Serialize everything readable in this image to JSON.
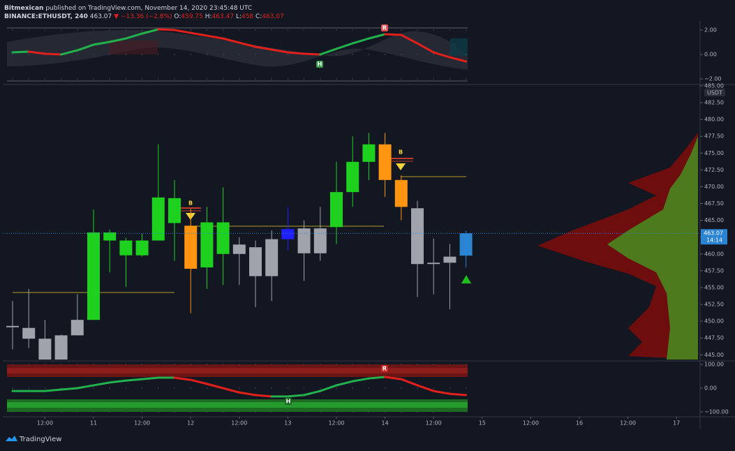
{
  "header": {
    "author": "Bitmexican",
    "published": "published on TradingView.com, November 14, 2020 23:45:48 UTC",
    "symbol": "BINANCE:ETHUSDT, 240",
    "arrow": "▼",
    "change": "−13.36 (−2.8%)",
    "o_label": "O:",
    "h_label": "H:",
    "l_label": "L:",
    "c_label": "C:",
    "countdown": "14:14",
    "unit": "USDT"
  },
  "footer": "TradingView",
  "chart_data": [
    {
      "type": "line",
      "name": "top-oscillator",
      "values": [
        0.17,
        0.23,
        0.06,
        0,
        0.34,
        0.8,
        1.03,
        1.31,
        1.71,
        2.06,
        2.0,
        1.77,
        1.54,
        1.31,
        0.97,
        0.63,
        0.4,
        0.17,
        0.06,
        0,
        0.46,
        0.91,
        1.31,
        1.66,
        1.6,
        0.91,
        0.17,
        -0.23,
        -0.57
      ],
      "up_color": "#22b14c",
      "down_color": "#e0201b",
      "ylim": [
        -2.4,
        2.46
      ],
      "yticks": [
        {
          "value": 2,
          "label": "2.00"
        },
        {
          "value": 0,
          "label": "0.00"
        },
        {
          "value": -2,
          "label": "−2.00"
        }
      ],
      "annotations": [
        "H",
        "R"
      ]
    },
    {
      "type": "candlestick",
      "name": "ETHUSDT",
      "open": [
        449.3,
        449.0,
        447.4,
        444.3,
        447.9,
        450.2,
        463.2,
        459.8,
        459.8,
        462.0,
        464.6,
        464.2,
        458.0,
        460.0,
        461.4,
        461.0,
        462.2,
        463.7,
        460.1,
        460.1,
        464.0,
        469.2,
        473.7,
        476.3,
        471.0,
        466.8,
        458.5,
        459.6,
        459.75
      ],
      "high": [
        453.0,
        454.8,
        450.2,
        448.0,
        454.0,
        466.6,
        463.6,
        462.4,
        463.0,
        476.3,
        471.0,
        466.7,
        467.0,
        469.9,
        462.5,
        462.0,
        463.5,
        467.0,
        465.0,
        467.0,
        473.7,
        477.5,
        478.0,
        478.0,
        471.7,
        467.9,
        462.3,
        461.5,
        463.47
      ],
      "low": [
        445.8,
        446.0,
        444.3,
        444.3,
        447.9,
        450.2,
        457.3,
        455.1,
        459.6,
        462.0,
        459.0,
        451.2,
        454.8,
        455.4,
        455.4,
        452.1,
        453.0,
        460.5,
        456.0,
        459.0,
        461.5,
        467.0,
        471.0,
        468.5,
        465.0,
        453.6,
        454.0,
        451.8,
        458.0
      ],
      "close": [
        449.1,
        447.4,
        444.3,
        447.9,
        450.2,
        463.2,
        462.0,
        462.0,
        462.0,
        468.4,
        468.3,
        457.8,
        464.7,
        464.7,
        460.0,
        456.7,
        456.7,
        462.2,
        463.8,
        463.8,
        469.2,
        473.7,
        476.3,
        471.0,
        467.0,
        458.5,
        458.7,
        458.7,
        463.07
      ],
      "colors": [
        "#a0a3ab",
        "#a0a3ab",
        "#a0a3ab",
        "#a0a3ab",
        "#a0a3ab",
        "#1fd11f",
        "#1fd11f",
        "#1fd11f",
        "#1fd11f",
        "#1fd11f",
        "#1fd11f",
        "#ff9510",
        "#1fd11f",
        "#1fd11f",
        "#a0a3ab",
        "#a0a3ab",
        "#a0a3ab",
        "#1f1fff",
        "#a0a3ab",
        "#a0a3ab",
        "#1fd11f",
        "#1fd11f",
        "#1fd11f",
        "#ff9510",
        "#ff9510",
        "#a0a3ab",
        "#a0a3ab",
        "#a0a3ab",
        "#2a84d2"
      ],
      "ylim": [
        444.3,
        485.1
      ],
      "yticks": [
        {
          "value": 445,
          "label": "445.00"
        },
        {
          "value": 447.5,
          "label": "447.50"
        },
        {
          "value": 450,
          "label": "450.00"
        },
        {
          "value": 452.5,
          "label": "452.50"
        },
        {
          "value": 455,
          "label": "455.00"
        },
        {
          "value": 457.5,
          "label": "457.50"
        },
        {
          "value": 460,
          "label": "460.00"
        },
        {
          "value": 462.5,
          "label": "462.50"
        },
        {
          "value": 465,
          "label": "465.00"
        },
        {
          "value": 467.5,
          "label": "467.50"
        },
        {
          "value": 470,
          "label": "470.00"
        },
        {
          "value": 472.5,
          "label": "472.50"
        },
        {
          "value": 475,
          "label": "475.00"
        },
        {
          "value": 477.5,
          "label": "477.50"
        },
        {
          "value": 480,
          "label": "480.00"
        },
        {
          "value": 482.5,
          "label": "482.50"
        },
        {
          "value": 485,
          "label": "485.00"
        }
      ],
      "xticks": [
        {
          "value": 2,
          "label": "12:00"
        },
        {
          "value": 5,
          "label": "11"
        },
        {
          "value": 8,
          "label": "12:00"
        },
        {
          "value": 11,
          "label": "12"
        },
        {
          "value": 14,
          "label": "12:00"
        },
        {
          "value": 17,
          "label": "13"
        },
        {
          "value": 20,
          "label": "12:00"
        },
        {
          "value": 23,
          "label": "14"
        },
        {
          "value": 26,
          "label": "12:00"
        },
        {
          "value": 29,
          "label": "15"
        },
        {
          "value": 32,
          "label": "12:00"
        },
        {
          "value": 35,
          "label": "16"
        },
        {
          "value": 38,
          "label": "12:00"
        },
        {
          "value": 41,
          "label": "17"
        }
      ],
      "annotations": [
        "B",
        "B"
      ]
    },
    {
      "type": "line",
      "name": "bottom-oscillator",
      "values": [
        -12,
        -12,
        -12,
        -6,
        0,
        12,
        24,
        32,
        38,
        44,
        44,
        35,
        18,
        0,
        -18,
        -29,
        -35,
        -35,
        -29,
        -12,
        12,
        29,
        41,
        47,
        38,
        12,
        -12,
        -24,
        -29
      ],
      "up_color": "#22b14c",
      "down_color": "#e0201b",
      "ylim": [
        -120.6,
        111.8
      ],
      "yticks": [
        {
          "value": 100,
          "label": "100.00"
        },
        {
          "value": 0,
          "label": "0.00"
        },
        {
          "value": -100,
          "label": "−100.00"
        }
      ],
      "annotations": [
        "R",
        "H"
      ]
    }
  ]
}
